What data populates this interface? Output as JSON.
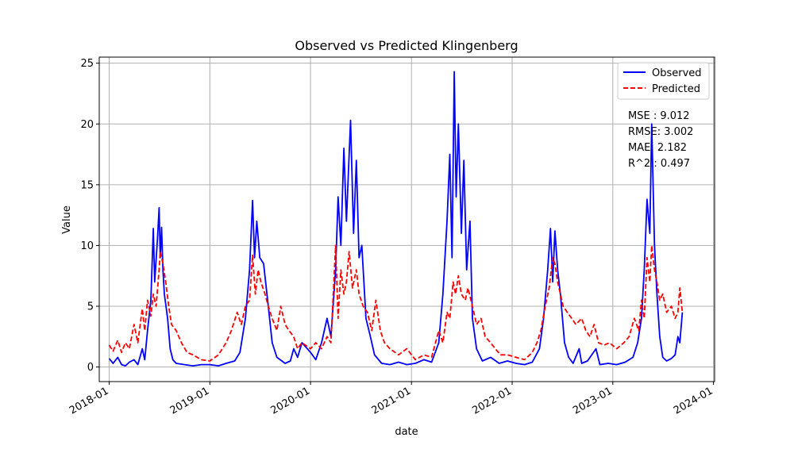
{
  "chart_data": {
    "type": "line",
    "title": "Observed vs Predicted Klingenberg",
    "xlabel": "date",
    "ylabel": "Value",
    "x_range": [
      "2017-11-26",
      "2024-01-05"
    ],
    "ylim": [
      -1.2,
      25.5
    ],
    "x_ticks": [
      "2018-01",
      "2019-01",
      "2020-01",
      "2021-01",
      "2022-01",
      "2023-01",
      "2024-01"
    ],
    "y_ticks": [
      0,
      5,
      10,
      15,
      20,
      25
    ],
    "grid": true,
    "legend_position": "top-right",
    "metrics": [
      "MSE : 9.012",
      "RMSE: 3.002",
      "MAE: 2.182",
      "R^2 : 0.497"
    ],
    "series": [
      {
        "name": "Observed",
        "color": "#0000ff",
        "style": "solid",
        "points": [
          [
            "2018-01-01",
            0.7
          ],
          [
            "2018-01-15",
            0.3
          ],
          [
            "2018-02-01",
            0.8
          ],
          [
            "2018-02-15",
            0.2
          ],
          [
            "2018-03-01",
            0.1
          ],
          [
            "2018-03-15",
            0.4
          ],
          [
            "2018-04-01",
            0.6
          ],
          [
            "2018-04-15",
            0.2
          ],
          [
            "2018-05-01",
            1.5
          ],
          [
            "2018-05-10",
            0.6
          ],
          [
            "2018-05-20",
            3.0
          ],
          [
            "2018-06-01",
            5.5
          ],
          [
            "2018-06-10",
            11.4
          ],
          [
            "2018-06-15",
            7.0
          ],
          [
            "2018-06-25",
            10.5
          ],
          [
            "2018-07-01",
            13.1
          ],
          [
            "2018-07-05",
            9.0
          ],
          [
            "2018-07-10",
            11.5
          ],
          [
            "2018-07-15",
            8.0
          ],
          [
            "2018-07-20",
            6.0
          ],
          [
            "2018-08-01",
            4.0
          ],
          [
            "2018-08-10",
            1.5
          ],
          [
            "2018-08-20",
            0.6
          ],
          [
            "2018-09-01",
            0.3
          ],
          [
            "2018-10-01",
            0.2
          ],
          [
            "2018-11-01",
            0.1
          ],
          [
            "2018-12-01",
            0.2
          ],
          [
            "2019-01-01",
            0.2
          ],
          [
            "2019-02-01",
            0.1
          ],
          [
            "2019-03-01",
            0.3
          ],
          [
            "2019-04-01",
            0.5
          ],
          [
            "2019-04-20",
            1.2
          ],
          [
            "2019-05-10",
            4.0
          ],
          [
            "2019-05-25",
            8.0
          ],
          [
            "2019-06-05",
            13.7
          ],
          [
            "2019-06-12",
            9.0
          ],
          [
            "2019-06-20",
            12.0
          ],
          [
            "2019-07-01",
            9.0
          ],
          [
            "2019-07-15",
            8.5
          ],
          [
            "2019-08-01",
            5.0
          ],
          [
            "2019-08-15",
            2.0
          ],
          [
            "2019-09-01",
            0.8
          ],
          [
            "2019-10-01",
            0.3
          ],
          [
            "2019-10-20",
            0.5
          ],
          [
            "2019-11-01",
            1.5
          ],
          [
            "2019-11-15",
            0.8
          ],
          [
            "2019-12-01",
            2.0
          ],
          [
            "2020-01-01",
            1.2
          ],
          [
            "2020-01-20",
            0.6
          ],
          [
            "2020-02-10",
            2.0
          ],
          [
            "2020-03-01",
            4.0
          ],
          [
            "2020-03-15",
            2.5
          ],
          [
            "2020-04-01",
            8.0
          ],
          [
            "2020-04-10",
            14.0
          ],
          [
            "2020-04-20",
            10.0
          ],
          [
            "2020-05-01",
            18.0
          ],
          [
            "2020-05-10",
            12.0
          ],
          [
            "2020-05-25",
            20.3
          ],
          [
            "2020-06-05",
            11.0
          ],
          [
            "2020-06-15",
            17.0
          ],
          [
            "2020-06-25",
            9.0
          ],
          [
            "2020-07-05",
            10.0
          ],
          [
            "2020-07-20",
            4.0
          ],
          [
            "2020-08-05",
            2.5
          ],
          [
            "2020-08-20",
            1.0
          ],
          [
            "2020-09-15",
            0.3
          ],
          [
            "2020-10-15",
            0.2
          ],
          [
            "2020-11-15",
            0.4
          ],
          [
            "2020-12-15",
            0.2
          ],
          [
            "2021-01-15",
            0.3
          ],
          [
            "2021-02-15",
            0.6
          ],
          [
            "2021-03-15",
            0.4
          ],
          [
            "2021-04-10",
            2.0
          ],
          [
            "2021-04-25",
            6.0
          ],
          [
            "2021-05-10",
            12.0
          ],
          [
            "2021-05-20",
            17.5
          ],
          [
            "2021-05-28",
            9.0
          ],
          [
            "2021-06-05",
            24.3
          ],
          [
            "2021-06-12",
            14.0
          ],
          [
            "2021-06-20",
            20.0
          ],
          [
            "2021-07-01",
            11.0
          ],
          [
            "2021-07-10",
            17.0
          ],
          [
            "2021-07-20",
            8.0
          ],
          [
            "2021-08-01",
            12.0
          ],
          [
            "2021-08-10",
            4.0
          ],
          [
            "2021-08-25",
            1.5
          ],
          [
            "2021-09-15",
            0.5
          ],
          [
            "2021-10-15",
            0.8
          ],
          [
            "2021-11-15",
            0.3
          ],
          [
            "2021-12-15",
            0.5
          ],
          [
            "2022-01-15",
            0.3
          ],
          [
            "2022-02-15",
            0.2
          ],
          [
            "2022-03-15",
            0.4
          ],
          [
            "2022-04-10",
            1.5
          ],
          [
            "2022-04-25",
            4.0
          ],
          [
            "2022-05-10",
            8.0
          ],
          [
            "2022-05-20",
            11.4
          ],
          [
            "2022-05-28",
            7.0
          ],
          [
            "2022-06-05",
            11.2
          ],
          [
            "2022-06-15",
            8.0
          ],
          [
            "2022-06-25",
            6.0
          ],
          [
            "2022-07-10",
            2.0
          ],
          [
            "2022-07-25",
            0.8
          ],
          [
            "2022-08-10",
            0.3
          ],
          [
            "2022-09-01",
            1.5
          ],
          [
            "2022-09-10",
            0.3
          ],
          [
            "2022-10-01",
            0.5
          ],
          [
            "2022-11-01",
            1.5
          ],
          [
            "2022-11-15",
            0.2
          ],
          [
            "2022-12-15",
            0.3
          ],
          [
            "2023-01-15",
            0.2
          ],
          [
            "2023-02-15",
            0.4
          ],
          [
            "2023-03-15",
            0.8
          ],
          [
            "2023-04-01",
            2.0
          ],
          [
            "2023-04-15",
            4.0
          ],
          [
            "2023-04-25",
            8.0
          ],
          [
            "2023-05-05",
            13.8
          ],
          [
            "2023-05-15",
            11.0
          ],
          [
            "2023-05-22",
            20.0
          ],
          [
            "2023-06-01",
            10.0
          ],
          [
            "2023-06-10",
            6.0
          ],
          [
            "2023-06-20",
            2.5
          ],
          [
            "2023-07-01",
            0.8
          ],
          [
            "2023-07-15",
            0.5
          ],
          [
            "2023-08-01",
            0.7
          ],
          [
            "2023-08-15",
            1.0
          ],
          [
            "2023-08-25",
            2.5
          ],
          [
            "2023-09-01",
            2.0
          ],
          [
            "2023-09-10",
            4.5
          ]
        ]
      },
      {
        "name": "Predicted",
        "color": "#ff0000",
        "style": "dashed",
        "points": [
          [
            "2018-01-01",
            1.8
          ],
          [
            "2018-01-15",
            1.3
          ],
          [
            "2018-02-01",
            2.2
          ],
          [
            "2018-02-15",
            1.2
          ],
          [
            "2018-03-01",
            2.0
          ],
          [
            "2018-03-15",
            1.5
          ],
          [
            "2018-04-01",
            3.5
          ],
          [
            "2018-04-15",
            2.0
          ],
          [
            "2018-05-01",
            4.8
          ],
          [
            "2018-05-10",
            3.0
          ],
          [
            "2018-05-20",
            5.5
          ],
          [
            "2018-06-01",
            4.2
          ],
          [
            "2018-06-10",
            6.0
          ],
          [
            "2018-06-20",
            5.0
          ],
          [
            "2018-07-01",
            8.0
          ],
          [
            "2018-07-05",
            9.5
          ],
          [
            "2018-07-15",
            8.5
          ],
          [
            "2018-07-25",
            7.0
          ],
          [
            "2018-08-05",
            5.0
          ],
          [
            "2018-08-15",
            3.5
          ],
          [
            "2018-09-01",
            3.0
          ],
          [
            "2018-09-20",
            2.0
          ],
          [
            "2018-10-10",
            1.2
          ],
          [
            "2018-11-01",
            1.0
          ],
          [
            "2018-12-01",
            0.6
          ],
          [
            "2019-01-01",
            0.5
          ],
          [
            "2019-02-01",
            1.0
          ],
          [
            "2019-03-01",
            2.0
          ],
          [
            "2019-03-20",
            3.0
          ],
          [
            "2019-04-10",
            4.5
          ],
          [
            "2019-04-25",
            3.5
          ],
          [
            "2019-05-10",
            5.0
          ],
          [
            "2019-05-25",
            5.5
          ],
          [
            "2019-06-05",
            9.2
          ],
          [
            "2019-06-15",
            6.0
          ],
          [
            "2019-06-25",
            8.0
          ],
          [
            "2019-07-05",
            7.0
          ],
          [
            "2019-07-20",
            6.0
          ],
          [
            "2019-08-01",
            5.0
          ],
          [
            "2019-08-15",
            4.0
          ],
          [
            "2019-09-01",
            3.0
          ],
          [
            "2019-09-15",
            5.0
          ],
          [
            "2019-10-01",
            3.5
          ],
          [
            "2019-10-15",
            3.0
          ],
          [
            "2019-11-01",
            2.5
          ],
          [
            "2019-11-15",
            1.5
          ],
          [
            "2019-12-01",
            2.0
          ],
          [
            "2020-01-01",
            1.5
          ],
          [
            "2020-01-20",
            2.0
          ],
          [
            "2020-02-10",
            1.5
          ],
          [
            "2020-03-01",
            2.5
          ],
          [
            "2020-03-15",
            2.0
          ],
          [
            "2020-04-01",
            10.0
          ],
          [
            "2020-04-10",
            4.0
          ],
          [
            "2020-04-20",
            8.0
          ],
          [
            "2020-05-01",
            6.0
          ],
          [
            "2020-05-10",
            7.0
          ],
          [
            "2020-05-20",
            9.5
          ],
          [
            "2020-06-01",
            6.5
          ],
          [
            "2020-06-15",
            8.0
          ],
          [
            "2020-06-25",
            6.0
          ],
          [
            "2020-07-10",
            5.0
          ],
          [
            "2020-07-25",
            4.5
          ],
          [
            "2020-08-10",
            3.0
          ],
          [
            "2020-08-25",
            5.5
          ],
          [
            "2020-09-10",
            3.0
          ],
          [
            "2020-09-25",
            2.0
          ],
          [
            "2020-10-15",
            1.5
          ],
          [
            "2020-11-15",
            1.0
          ],
          [
            "2020-12-15",
            1.5
          ],
          [
            "2021-01-15",
            0.6
          ],
          [
            "2021-02-15",
            1.0
          ],
          [
            "2021-03-15",
            0.8
          ],
          [
            "2021-04-10",
            3.0
          ],
          [
            "2021-04-25",
            2.0
          ],
          [
            "2021-05-10",
            4.5
          ],
          [
            "2021-05-20",
            4.0
          ],
          [
            "2021-06-01",
            7.0
          ],
          [
            "2021-06-10",
            6.0
          ],
          [
            "2021-06-20",
            7.5
          ],
          [
            "2021-07-01",
            6.0
          ],
          [
            "2021-07-15",
            5.5
          ],
          [
            "2021-07-25",
            6.5
          ],
          [
            "2021-08-10",
            5.0
          ],
          [
            "2021-08-25",
            3.5
          ],
          [
            "2021-09-10",
            4.0
          ],
          [
            "2021-09-25",
            2.5
          ],
          [
            "2021-10-15",
            2.0
          ],
          [
            "2021-11-01",
            1.5
          ],
          [
            "2021-11-20",
            1.0
          ],
          [
            "2021-12-15",
            1.0
          ],
          [
            "2022-01-15",
            0.8
          ],
          [
            "2022-02-15",
            0.6
          ],
          [
            "2022-03-15",
            1.2
          ],
          [
            "2022-04-01",
            2.0
          ],
          [
            "2022-04-15",
            3.0
          ],
          [
            "2022-05-01",
            5.0
          ],
          [
            "2022-05-15",
            6.5
          ],
          [
            "2022-05-28",
            9.0
          ],
          [
            "2022-06-05",
            8.5
          ],
          [
            "2022-06-15",
            7.0
          ],
          [
            "2022-06-25",
            6.0
          ],
          [
            "2022-07-05",
            5.0
          ],
          [
            "2022-07-20",
            4.5
          ],
          [
            "2022-08-05",
            4.0
          ],
          [
            "2022-08-20",
            3.5
          ],
          [
            "2022-09-10",
            4.0
          ],
          [
            "2022-09-25",
            3.0
          ],
          [
            "2022-10-10",
            2.5
          ],
          [
            "2022-10-25",
            3.5
          ],
          [
            "2022-11-10",
            2.0
          ],
          [
            "2022-12-01",
            1.8
          ],
          [
            "2022-12-20",
            2.0
          ],
          [
            "2023-01-15",
            1.5
          ],
          [
            "2023-02-10",
            2.0
          ],
          [
            "2023-03-01",
            2.5
          ],
          [
            "2023-03-20",
            4.0
          ],
          [
            "2023-04-05",
            3.0
          ],
          [
            "2023-04-15",
            5.5
          ],
          [
            "2023-04-25",
            4.0
          ],
          [
            "2023-05-05",
            9.0
          ],
          [
            "2023-05-15",
            7.0
          ],
          [
            "2023-05-22",
            10.0
          ],
          [
            "2023-06-01",
            8.0
          ],
          [
            "2023-06-10",
            7.0
          ],
          [
            "2023-06-20",
            5.5
          ],
          [
            "2023-07-01",
            6.0
          ],
          [
            "2023-07-15",
            4.5
          ],
          [
            "2023-08-01",
            5.0
          ],
          [
            "2023-08-15",
            4.0
          ],
          [
            "2023-08-25",
            4.5
          ],
          [
            "2023-09-01",
            6.5
          ],
          [
            "2023-09-10",
            4.5
          ]
        ]
      }
    ]
  }
}
